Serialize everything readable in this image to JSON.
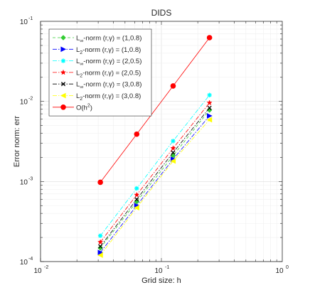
{
  "chart_data": {
    "type": "line",
    "title": "DIDS",
    "xlabel": "Grid size: h",
    "ylabel": "Error norm: err",
    "xscale": "log",
    "yscale": "log",
    "xlim": [
      0.01,
      1
    ],
    "ylim": [
      0.0001,
      0.1
    ],
    "grid": true,
    "legend_position": "top-left",
    "xticks": [
      {
        "value": 0.01,
        "base": "10",
        "exp": "-2"
      },
      {
        "value": 0.1,
        "base": "10",
        "exp": "-1"
      },
      {
        "value": 1,
        "base": "10",
        "exp": "0"
      }
    ],
    "yticks": [
      {
        "value": 0.0001,
        "base": "10",
        "exp": "-4"
      },
      {
        "value": 0.001,
        "base": "10",
        "exp": "-3"
      },
      {
        "value": 0.01,
        "base": "10",
        "exp": "-2"
      },
      {
        "value": 0.1,
        "base": "10",
        "exp": "-1"
      }
    ],
    "x": [
      0.03125,
      0.0625,
      0.125,
      0.25
    ],
    "series": [
      {
        "name": "L∞-norm (r,γ) = (1,0.8)",
        "norm": "L",
        "sub": "∞",
        "rest": "-norm (r,γ) = (1,0.8)",
        "color": "#33cc33",
        "dash": "4,3",
        "marker": "diamond",
        "values": [
          0.000148,
          0.00056,
          0.0021,
          0.0078
        ]
      },
      {
        "name": "L2-norm (r,γ) = (1,0.8)",
        "norm": "L",
        "sub": "2",
        "rest": "-norm (r,γ) = (1,0.8)",
        "color": "#0000ff",
        "dash": "6,2,1.5,2",
        "marker": "triangle-right",
        "values": [
          0.00013,
          0.0005,
          0.0019,
          0.0066
        ]
      },
      {
        "name": "L∞-norm (r,γ) = (2,0.5)",
        "norm": "L",
        "sub": "∞",
        "rest": "-norm (r,γ) = (2,0.5)",
        "color": "#00ffff",
        "dash": "6,2,1.5,2",
        "marker": "asterisk",
        "values": [
          0.00021,
          0.00082,
          0.0032,
          0.012
        ]
      },
      {
        "name": "L2-norm (r,γ) = (2,0.5)",
        "norm": "L",
        "sub": "2",
        "rest": "-norm (r,γ) = (2,0.5)",
        "color": "#ff0000",
        "dash": "6,2,1.5,2",
        "marker": "star",
        "values": [
          0.000175,
          0.00068,
          0.0026,
          0.0096
        ]
      },
      {
        "name": "L∞-norm (r,γ) = (3,0.8)",
        "norm": "L",
        "sub": "∞",
        "rest": "-norm (r,γ) = (3,0.8)",
        "color": "#000000",
        "dash": "6,2,1.5,2",
        "marker": "x",
        "values": [
          0.000155,
          0.0006,
          0.0023,
          0.0083
        ]
      },
      {
        "name": "L2-norm (r,γ) = (3,0.8)",
        "norm": "L",
        "sub": "2",
        "rest": "-norm (r,γ) = (3,0.8)",
        "color": "#ffff00",
        "dash": "6,2,1.5,2",
        "marker": "triangle-left",
        "values": [
          0.00012,
          0.00047,
          0.0018,
          0.0059
        ]
      },
      {
        "name": "O(h2)",
        "norm": "O(h",
        "sup": "2",
        "rest": ")",
        "color": "#ff0000",
        "dash": "",
        "marker": "circle",
        "values": [
          0.000977,
          0.0039,
          0.0156,
          0.0625
        ]
      }
    ]
  }
}
